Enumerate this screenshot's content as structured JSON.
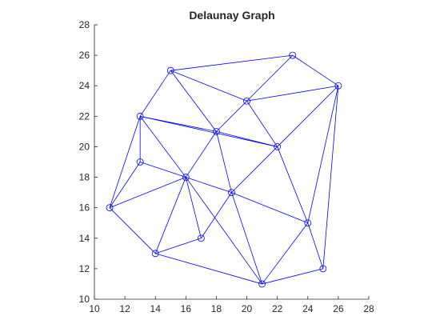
{
  "chart_data": {
    "type": "scatter",
    "title": "Delaunay Graph",
    "xlabel": "",
    "ylabel": "",
    "xlim": [
      10,
      28
    ],
    "ylim": [
      10,
      28
    ],
    "xticks": [
      10,
      12,
      14,
      16,
      18,
      20,
      22,
      24,
      26,
      28
    ],
    "yticks": [
      10,
      12,
      14,
      16,
      18,
      20,
      22,
      24,
      26,
      28
    ],
    "xtick_labels": [
      "10",
      "12",
      "14",
      "16",
      "18",
      "20",
      "22",
      "24",
      "26",
      "28"
    ],
    "ytick_labels": [
      "10",
      "12",
      "14",
      "16",
      "18",
      "20",
      "22",
      "24",
      "26",
      "28"
    ],
    "grid": false,
    "marker": "circle",
    "color": "#0000ff",
    "nodes": [
      {
        "id": 1,
        "x": 11,
        "y": 16
      },
      {
        "id": 2,
        "x": 13,
        "y": 19
      },
      {
        "id": 3,
        "x": 13,
        "y": 22
      },
      {
        "id": 4,
        "x": 14,
        "y": 13
      },
      {
        "id": 5,
        "x": 15,
        "y": 25
      },
      {
        "id": 6,
        "x": 16,
        "y": 18
      },
      {
        "id": 7,
        "x": 17,
        "y": 14
      },
      {
        "id": 8,
        "x": 18,
        "y": 21
      },
      {
        "id": 9,
        "x": 19,
        "y": 17
      },
      {
        "id": 10,
        "x": 20,
        "y": 23
      },
      {
        "id": 11,
        "x": 21,
        "y": 11
      },
      {
        "id": 12,
        "x": 22,
        "y": 20
      },
      {
        "id": 13,
        "x": 23,
        "y": 26
      },
      {
        "id": 14,
        "x": 24,
        "y": 15
      },
      {
        "id": 15,
        "x": 25,
        "y": 12
      },
      {
        "id": 16,
        "x": 26,
        "y": 24
      }
    ],
    "edges": [
      [
        1,
        2
      ],
      [
        1,
        3
      ],
      [
        1,
        4
      ],
      [
        1,
        6
      ],
      [
        2,
        3
      ],
      [
        2,
        6
      ],
      [
        3,
        5
      ],
      [
        3,
        6
      ],
      [
        3,
        8
      ],
      [
        3,
        12
      ],
      [
        4,
        6
      ],
      [
        4,
        7
      ],
      [
        4,
        11
      ],
      [
        5,
        8
      ],
      [
        5,
        10
      ],
      [
        5,
        13
      ],
      [
        6,
        7
      ],
      [
        6,
        8
      ],
      [
        6,
        9
      ],
      [
        6,
        11
      ],
      [
        7,
        9
      ],
      [
        8,
        9
      ],
      [
        8,
        10
      ],
      [
        8,
        12
      ],
      [
        9,
        11
      ],
      [
        9,
        12
      ],
      [
        9,
        14
      ],
      [
        10,
        12
      ],
      [
        10,
        13
      ],
      [
        10,
        16
      ],
      [
        11,
        14
      ],
      [
        11,
        15
      ],
      [
        12,
        14
      ],
      [
        12,
        16
      ],
      [
        13,
        16
      ],
      [
        14,
        15
      ],
      [
        14,
        16
      ],
      [
        15,
        16
      ]
    ]
  }
}
